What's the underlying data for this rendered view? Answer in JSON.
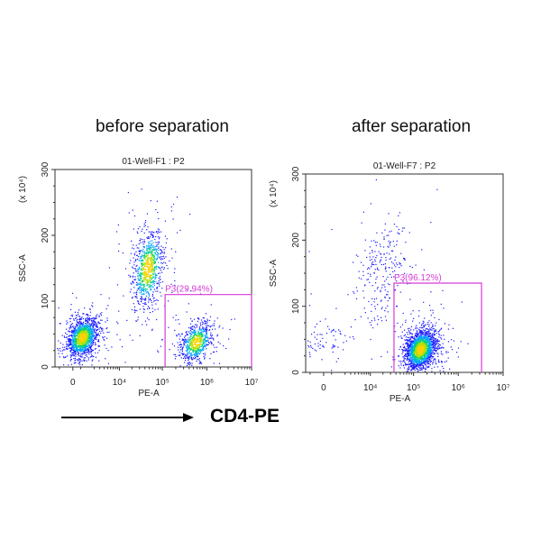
{
  "headings": {
    "left": "before separation",
    "right": "after separation"
  },
  "arrow_label": "CD4-PE",
  "colors": {
    "gate": "#d63bd6",
    "frame": "#333333",
    "density": [
      "#1a1aff",
      "#00a0ff",
      "#00d080",
      "#b0e000",
      "#ffd000"
    ]
  },
  "chart_data": [
    {
      "type": "scatter",
      "title": "01-Well-F1 : P2",
      "xlabel": "PE-A",
      "ylabel": "SSC-A",
      "y_multiplier": "(x 10⁴)",
      "x_scale": "biexponential",
      "x_ticks": [
        "0",
        "10⁴",
        "10⁵",
        "10⁶",
        "10⁷"
      ],
      "y_ticks": [
        "0",
        "100",
        "200",
        "300"
      ],
      "ylim": [
        0,
        300
      ],
      "populations": [
        {
          "pe_center": 600,
          "ssc_center": 45,
          "events": 1500
        },
        {
          "pe_center": 46000,
          "ssc_center": 150,
          "events": 900
        },
        {
          "pe_center": 560000,
          "ssc_center": 38,
          "events": 700
        }
      ],
      "gate": {
        "name": "P3",
        "label": "P3(29.94%)",
        "percent": 29.94,
        "pe_min": 115000,
        "pe_max": 10000000,
        "ssc_min": 0,
        "ssc_max": 110
      }
    },
    {
      "type": "scatter",
      "title": "01-Well-F7 : P2",
      "xlabel": "PE-A",
      "ylabel": "SSC-A",
      "y_multiplier": "(x 10⁴)",
      "x_scale": "biexponential",
      "x_ticks": [
        "0",
        "10⁴",
        "10⁵",
        "10⁶",
        "10⁷"
      ],
      "y_ticks": [
        "0",
        "100",
        "200",
        "300"
      ],
      "ylim": [
        0,
        300
      ],
      "populations": [
        {
          "pe_center": -100,
          "ssc_center": 45,
          "events": 80
        },
        {
          "pe_center": 17000,
          "ssc_center": 150,
          "events": 250
        },
        {
          "pe_center": 140000,
          "ssc_center": 35,
          "events": 2000
        }
      ],
      "gate": {
        "name": "P3",
        "label": "P3(96.12%)",
        "percent": 96.12,
        "pe_min": 36000,
        "pe_max": 3300000,
        "ssc_min": 0,
        "ssc_max": 135
      }
    }
  ]
}
